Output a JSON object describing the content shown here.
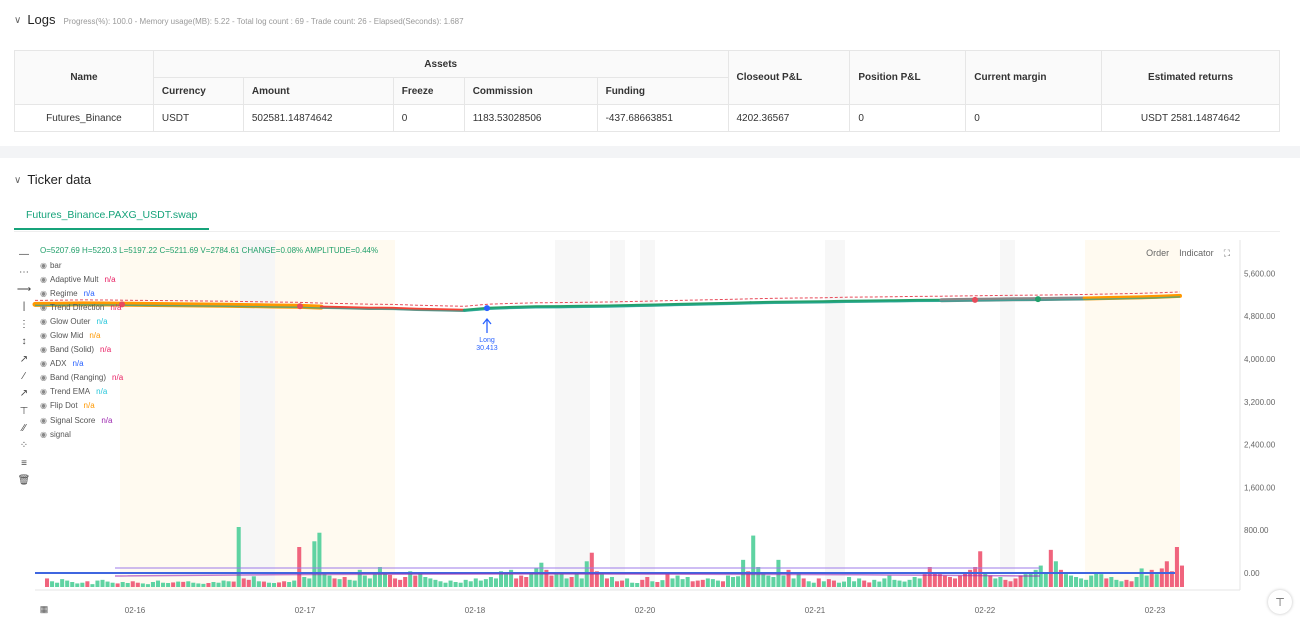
{
  "logs": {
    "title": "Logs",
    "meta": "Progress(%): 100.0  - Memory usage(MB): 5.22 - Total log count : 69 - Trade count: 26 - Elapsed(Seconds): 1.687"
  },
  "assets_table": {
    "headers": {
      "name": "Name",
      "assets": "Assets",
      "currency": "Currency",
      "amount": "Amount",
      "freeze": "Freeze",
      "commission": "Commission",
      "funding": "Funding",
      "closeout": "Closeout P&L",
      "position": "Position P&L",
      "margin": "Current margin",
      "returns": "Estimated returns"
    },
    "row": {
      "name": "Futures_Binance",
      "currency": "USDT",
      "amount": "502581.14874642",
      "freeze": "0",
      "commission": "1183.53028506",
      "funding": "-437.68663851",
      "closeout": "4202.36567",
      "position": "0",
      "margin": "0",
      "returns": "USDT 2581.14874642"
    }
  },
  "ticker": {
    "title": "Ticker data",
    "tab": "Futures_Binance.PAXG_USDT.swap",
    "ohlc": "O=5207.69 H=5220.3 L=5197.22 C=5211.69 V=2784.61 CHANGE=0.08% AMPLITUDE=0.44%",
    "order_btn": "Order",
    "indicator_btn": "Indicator",
    "legend": [
      {
        "name": "bar",
        "value": "",
        "color": "#555555"
      },
      {
        "name": "Adaptive Mult",
        "value": "n/a",
        "color": "#e91e63"
      },
      {
        "name": "Regime",
        "value": "n/a",
        "color": "#2962ff"
      },
      {
        "name": "Trend Direction",
        "value": "n/a",
        "color": "#e91e63"
      },
      {
        "name": "Glow Outer",
        "value": "n/a",
        "color": "#26c6da"
      },
      {
        "name": "Glow Mid",
        "value": "n/a",
        "color": "#ff9800"
      },
      {
        "name": "Band (Solid)",
        "value": "n/a",
        "color": "#e91e63"
      },
      {
        "name": "ADX",
        "value": "n/a",
        "color": "#2962ff"
      },
      {
        "name": "Band (Ranging)",
        "value": "n/a",
        "color": "#e91e63"
      },
      {
        "name": "Trend EMA",
        "value": "n/a",
        "color": "#26c6da"
      },
      {
        "name": "Flip Dot",
        "value": "n/a",
        "color": "#ff9800"
      },
      {
        "name": "Signal Score",
        "value": "n/a",
        "color": "#9c27b0"
      },
      {
        "name": "signal",
        "value": "",
        "color": "#555555"
      }
    ]
  },
  "chart_data": {
    "type": "line",
    "y_ticks": [
      "5,600.00",
      "4,800.00",
      "4,000.00",
      "3,200.00",
      "2,400.00",
      "1,600.00",
      "800.00",
      "0.00"
    ],
    "y_tick_values": [
      5600,
      4800,
      4000,
      3200,
      2400,
      1600,
      800,
      0
    ],
    "x_ticks": [
      "02-16",
      "02-17",
      "02-18",
      "02-20",
      "02-21",
      "02-22",
      "02-23"
    ],
    "price_series": {
      "name": "close",
      "values": [
        5020,
        5025,
        5030,
        5028,
        5022,
        5018,
        5015,
        5010,
        5005,
        4998,
        4990,
        4985,
        4970,
        4960,
        4950,
        4945,
        4930,
        4920,
        4910,
        4950,
        4965,
        4975,
        4980,
        4985,
        4990,
        5000,
        5010,
        5020,
        5030,
        5040,
        5050,
        5060,
        5065,
        5070,
        5080,
        5085,
        5090,
        5095,
        5100,
        5105,
        5110,
        5115,
        5120,
        5125,
        5130,
        5140,
        5150,
        5160,
        5180
      ]
    },
    "annotation": {
      "label": "Long",
      "value": "30.413"
    },
    "volume": [
      60,
      40,
      30,
      55,
      45,
      35,
      25,
      30,
      40,
      20,
      45,
      50,
      38,
      30,
      25,
      35,
      28,
      40,
      30,
      25,
      20,
      35,
      45,
      30,
      28,
      32,
      38,
      36,
      40,
      30,
      25,
      22,
      28,
      35,
      30,
      45,
      40,
      38,
      420,
      60,
      50,
      75,
      40,
      38,
      30,
      28,
      32,
      40,
      35,
      45,
      280,
      70,
      60,
      320,
      380,
      90,
      80,
      60,
      55,
      70,
      50,
      45,
      120,
      80,
      60,
      90,
      140,
      100,
      85,
      60,
      50,
      70,
      110,
      80,
      95,
      70,
      60,
      50,
      40,
      30,
      45,
      35,
      30,
      50,
      40,
      60,
      45,
      55,
      70,
      60,
      110,
      90,
      120,
      60,
      80,
      70,
      95,
      130,
      170,
      120,
      80,
      90,
      100,
      60,
      70,
      95,
      60,
      180,
      240,
      110,
      90,
      60,
      70,
      40,
      45,
      60,
      30,
      28,
      50,
      70,
      40,
      35,
      48,
      90,
      60,
      80,
      55,
      70,
      40,
      45,
      50,
      60,
      55,
      45,
      40,
      80,
      70,
      75,
      190,
      110,
      360,
      140,
      90,
      80,
      70,
      190,
      80,
      120,
      60,
      90,
      60,
      40,
      30,
      60,
      40,
      55,
      45,
      30,
      38,
      70,
      40,
      60,
      45,
      32,
      50,
      38,
      60,
      80,
      50,
      45,
      38,
      50,
      70,
      60,
      90,
      140,
      100,
      90,
      80,
      70,
      60,
      80,
      100,
      120,
      140,
      250,
      100,
      80,
      60,
      70,
      50,
      40,
      60,
      80,
      90,
      100,
      120,
      150,
      100,
      260,
      180,
      120,
      90,
      80,
      70,
      60,
      50,
      80,
      100,
      90,
      60,
      70,
      50,
      40,
      50,
      40,
      70,
      130,
      80,
      120,
      90,
      130,
      180,
      110,
      280,
      150
    ]
  }
}
